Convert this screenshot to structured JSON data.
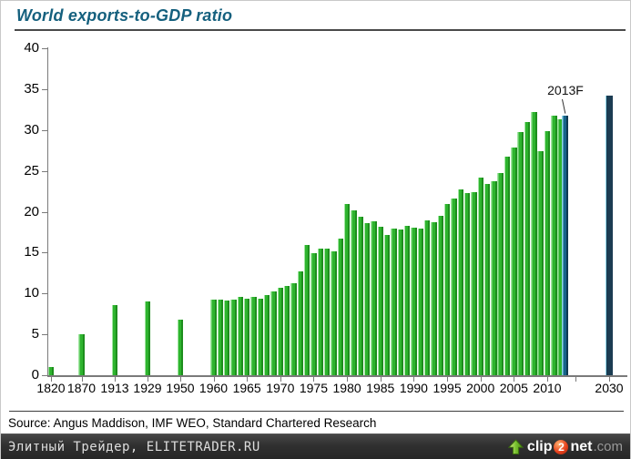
{
  "source": "Source: Angus Maddison, IMF WEO, Standard Chartered Research",
  "footer": {
    "left_text": "Элитный Трейдер, ELITETRADER.RU",
    "logo": {
      "clip": "clip",
      "two": "2",
      "net": "net",
      "com": ".com",
      "arrow_icon": "upload-arrow-icon"
    }
  },
  "colors": {
    "title": "#15607e",
    "bar_green_light": "#a0e6a0",
    "bar_green": "#2eb42e",
    "bar_green_dark": "#1d8e1d",
    "bar_blue_light": "#8fd6e8",
    "bar_blue": "#17648a",
    "bar_blue_dark": "#0e3a52",
    "bar_navy": "#1b3c52",
    "logo_ball": "#e8431f"
  },
  "chart_data": {
    "type": "bar",
    "title": "World exports-to-GDP ratio",
    "annotation": "2013F",
    "xlabel": "",
    "ylabel": "",
    "ylim": [
      0,
      40
    ],
    "grid": false,
    "yticks": [
      0,
      5,
      10,
      15,
      20,
      25,
      30,
      35,
      40
    ],
    "x_ticks": [
      {
        "label": "1820",
        "at": "1820"
      },
      {
        "label": "1870",
        "at": "1870"
      },
      {
        "label": "1913",
        "at": "1913"
      },
      {
        "label": "1929",
        "at": "1929"
      },
      {
        "label": "1950",
        "at": "1950"
      },
      {
        "label": "1960",
        "at": "1960"
      },
      {
        "label": "1965",
        "at": "1965"
      },
      {
        "label": "1970",
        "at": "1970"
      },
      {
        "label": "1975",
        "at": "1975"
      },
      {
        "label": "1980",
        "at": "1980"
      },
      {
        "label": "1985",
        "at": "1985"
      },
      {
        "label": "1990",
        "at": "1990"
      },
      {
        "label": "1995",
        "at": "1995"
      },
      {
        "label": "2000",
        "at": "2000"
      },
      {
        "label": "2005",
        "at": "2005"
      },
      {
        "label": "2010",
        "at": "2010"
      },
      {
        "label": "",
        "at": "2015"
      },
      {
        "label": "2030",
        "at": "2030"
      }
    ],
    "bars": [
      {
        "year": "1820",
        "value": 1.0,
        "kind": "green"
      },
      {
        "year": "1870",
        "value": 5.0,
        "kind": "green"
      },
      {
        "year": "1913",
        "value": 8.6,
        "kind": "green"
      },
      {
        "year": "1929",
        "value": 9.0,
        "kind": "green"
      },
      {
        "year": "1950",
        "value": 6.8,
        "kind": "green"
      },
      {
        "year": "1960",
        "value": 9.3,
        "kind": "green"
      },
      {
        "year": "1961",
        "value": 9.3,
        "kind": "green"
      },
      {
        "year": "1962",
        "value": 9.1,
        "kind": "green"
      },
      {
        "year": "1963",
        "value": 9.2,
        "kind": "green"
      },
      {
        "year": "1964",
        "value": 9.6,
        "kind": "green"
      },
      {
        "year": "1965",
        "value": 9.4,
        "kind": "green"
      },
      {
        "year": "1966",
        "value": 9.6,
        "kind": "green"
      },
      {
        "year": "1967",
        "value": 9.4,
        "kind": "green"
      },
      {
        "year": "1968",
        "value": 9.8,
        "kind": "green"
      },
      {
        "year": "1969",
        "value": 10.2,
        "kind": "green"
      },
      {
        "year": "1970",
        "value": 10.7,
        "kind": "green"
      },
      {
        "year": "1971",
        "value": 10.9,
        "kind": "green"
      },
      {
        "year": "1972",
        "value": 11.2,
        "kind": "green"
      },
      {
        "year": "1973",
        "value": 12.7,
        "kind": "green"
      },
      {
        "year": "1974",
        "value": 15.9,
        "kind": "green"
      },
      {
        "year": "1975",
        "value": 14.9,
        "kind": "green"
      },
      {
        "year": "1976",
        "value": 15.5,
        "kind": "green"
      },
      {
        "year": "1977",
        "value": 15.5,
        "kind": "green"
      },
      {
        "year": "1978",
        "value": 15.1,
        "kind": "green"
      },
      {
        "year": "1979",
        "value": 16.7,
        "kind": "green"
      },
      {
        "year": "1980",
        "value": 21.0,
        "kind": "green"
      },
      {
        "year": "1981",
        "value": 20.2,
        "kind": "green"
      },
      {
        "year": "1982",
        "value": 19.4,
        "kind": "green"
      },
      {
        "year": "1983",
        "value": 18.6,
        "kind": "green"
      },
      {
        "year": "1984",
        "value": 18.8,
        "kind": "green"
      },
      {
        "year": "1985",
        "value": 18.2,
        "kind": "green"
      },
      {
        "year": "1986",
        "value": 17.2,
        "kind": "green"
      },
      {
        "year": "1987",
        "value": 17.9,
        "kind": "green"
      },
      {
        "year": "1988",
        "value": 17.8,
        "kind": "green"
      },
      {
        "year": "1989",
        "value": 18.3,
        "kind": "green"
      },
      {
        "year": "1990",
        "value": 18.1,
        "kind": "green"
      },
      {
        "year": "1991",
        "value": 17.9,
        "kind": "green"
      },
      {
        "year": "1992",
        "value": 18.9,
        "kind": "green"
      },
      {
        "year": "1993",
        "value": 18.7,
        "kind": "green"
      },
      {
        "year": "1994",
        "value": 19.5,
        "kind": "green"
      },
      {
        "year": "1995",
        "value": 21.0,
        "kind": "green"
      },
      {
        "year": "1996",
        "value": 21.6,
        "kind": "green"
      },
      {
        "year": "1997",
        "value": 22.7,
        "kind": "green"
      },
      {
        "year": "1998",
        "value": 22.3,
        "kind": "green"
      },
      {
        "year": "1999",
        "value": 22.4,
        "kind": "green"
      },
      {
        "year": "2000",
        "value": 24.2,
        "kind": "green"
      },
      {
        "year": "2001",
        "value": 23.4,
        "kind": "green"
      },
      {
        "year": "2002",
        "value": 23.7,
        "kind": "green"
      },
      {
        "year": "2003",
        "value": 24.7,
        "kind": "green"
      },
      {
        "year": "2004",
        "value": 26.7,
        "kind": "green"
      },
      {
        "year": "2005",
        "value": 27.9,
        "kind": "green"
      },
      {
        "year": "2006",
        "value": 29.8,
        "kind": "green"
      },
      {
        "year": "2007",
        "value": 31.0,
        "kind": "green"
      },
      {
        "year": "2008",
        "value": 32.2,
        "kind": "green"
      },
      {
        "year": "2009",
        "value": 27.4,
        "kind": "green"
      },
      {
        "year": "2010",
        "value": 29.9,
        "kind": "green"
      },
      {
        "year": "2011",
        "value": 31.7,
        "kind": "green"
      },
      {
        "year": "2012",
        "value": 31.3,
        "kind": "green"
      },
      {
        "year": "2013F",
        "value": 31.8,
        "kind": "blue"
      },
      {
        "year": "2030",
        "value": 34.2,
        "kind": "navy"
      }
    ]
  }
}
